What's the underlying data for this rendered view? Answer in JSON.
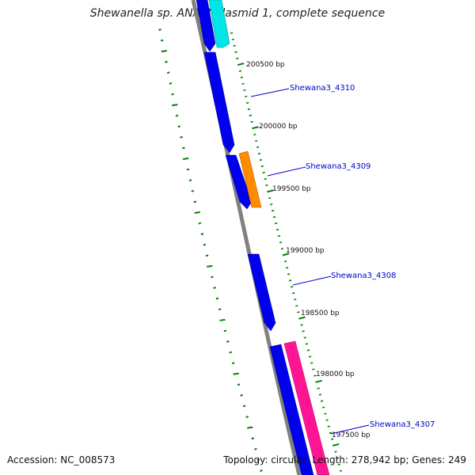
{
  "title": "Shewanella sp. ANA-3 plasmid 1, complete sequence",
  "footer": {
    "accession_label": "Accession:",
    "accession": "NC_008573",
    "topology_label": "Topology:",
    "topology": "circular",
    "length_label": "Length:",
    "length": "278,942 bp",
    "genes_label": "Genes:",
    "genes": "249"
  },
  "tick_labels": [
    "200500 bp",
    "200000 bp",
    "199500 bp",
    "199000 bp",
    "198500 bp",
    "198000 bp",
    "197500 bp"
  ],
  "gene_labels": [
    "Shewana3_4310",
    "Shewana3_4309",
    "Shewana3_4308",
    "Shewana3_4307"
  ],
  "colors": {
    "backbone": "#808080",
    "gene_forward": "#0000ee",
    "gene_cyan": "#00e5e5",
    "gene_orange": "#ff8c00",
    "gene_pink": "#ff1493",
    "tick": "#008000",
    "label": "#0000cc",
    "gc_dots": "#008000"
  }
}
